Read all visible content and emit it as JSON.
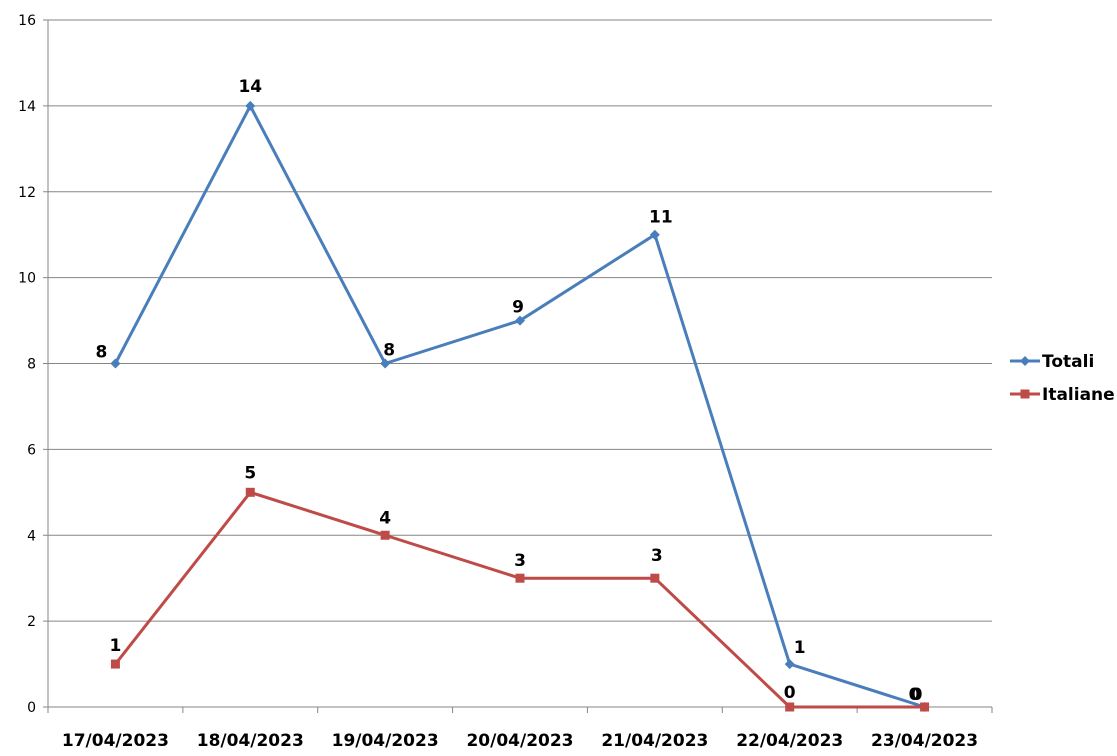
{
  "chart_data": {
    "type": "line",
    "categories": [
      "17/04/2023",
      "18/04/2023",
      "19/04/2023",
      "20/04/2023",
      "21/04/2023",
      "22/04/2023",
      "23/04/2023"
    ],
    "series": [
      {
        "name": "Totali",
        "values": [
          8,
          14,
          8,
          9,
          11,
          1,
          0
        ],
        "color": "#4a7ebb",
        "marker": "diamond"
      },
      {
        "name": "Italiane",
        "values": [
          1,
          5,
          4,
          3,
          3,
          0,
          0
        ],
        "color": "#be4b48",
        "marker": "square"
      }
    ],
    "title": "",
    "xlabel": "",
    "ylabel": "",
    "ylim": [
      0,
      16
    ],
    "yticks": [
      0,
      2,
      4,
      6,
      8,
      10,
      12,
      14,
      16
    ],
    "grid": true,
    "legend": "right",
    "data_labels": true
  }
}
